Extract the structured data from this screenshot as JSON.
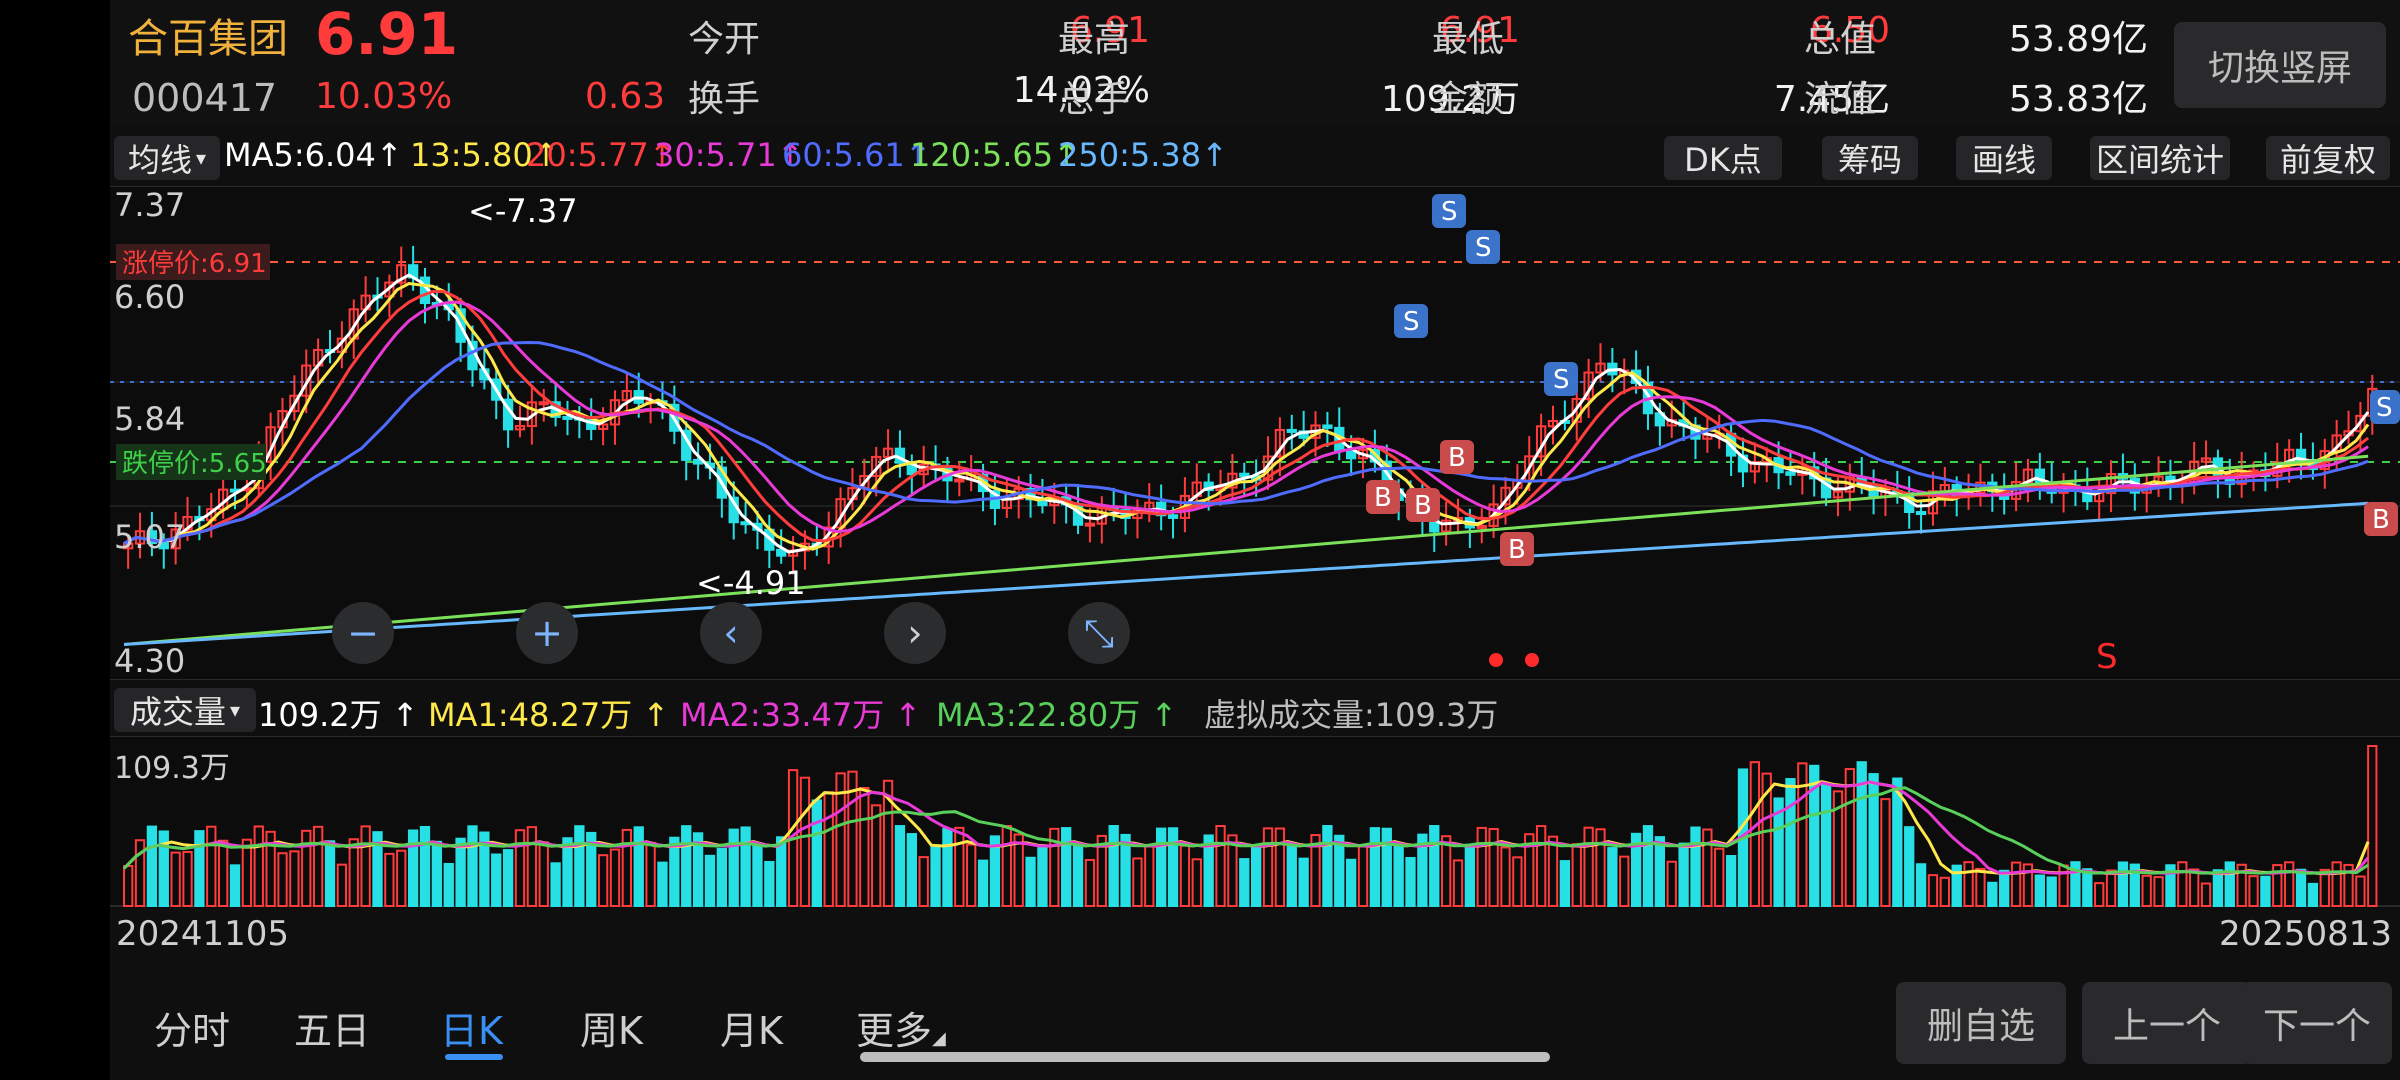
{
  "stock": {
    "name": "合百集团",
    "price": "6.91",
    "code": "000417",
    "change_pct": "10.03%",
    "change": "0.63"
  },
  "stats": [
    {
      "label": "今开",
      "value": "6.91",
      "color": "#ff3b3b"
    },
    {
      "label": "最高",
      "value": "6.91",
      "color": "#ff3b3b"
    },
    {
      "label": "最低",
      "value": "6.50",
      "color": "#ff3b3b"
    },
    {
      "label": "总值",
      "value": "53.89亿",
      "color": "#f2f2f2"
    },
    {
      "label": "换手",
      "value": "14.02%",
      "color": "#f2f2f2"
    },
    {
      "label": "总手",
      "value": "109.2万",
      "color": "#f2f2f2"
    },
    {
      "label": "金额",
      "value": "7.45亿",
      "color": "#f2f2f2"
    },
    {
      "label": "流值",
      "value": "53.83亿",
      "color": "#f2f2f2"
    }
  ],
  "header": {
    "switch_label": "切换竖屏"
  },
  "ma_bar": {
    "selector": "均线",
    "items": [
      {
        "text": "MA5:6.04",
        "color": "#ffffff"
      },
      {
        "text": "13:5.80",
        "color": "#ffe84a"
      },
      {
        "text": "20:5.77",
        "color": "#ff3d3d"
      },
      {
        "text": "30:5.71",
        "color": "#e83ad6"
      },
      {
        "text": "60:5.61",
        "color": "#4f6cff"
      },
      {
        "text": "120:5.65",
        "color": "#7be05a"
      },
      {
        "text": "250:5.38",
        "color": "#68b8ff"
      }
    ],
    "arrow": "↑",
    "tools": [
      "DK点",
      "筹码",
      "画线",
      "区间统计",
      "前复权"
    ]
  },
  "main_chart": {
    "y_ticks": [
      "7.37",
      "6.60",
      "5.84",
      "5.07",
      "4.30"
    ],
    "limit_up_label": "涨停价:6.91",
    "limit_down_label": "跌停价:5.65",
    "high_marker": "<-7.37",
    "low_marker": "<-4.91",
    "buy_label": "B",
    "sell_label": "S",
    "sell_footer": "S",
    "zoom_buttons": [
      "−",
      "+",
      "‹",
      "›",
      "⤡"
    ]
  },
  "volume_bar": {
    "selector": "成交量",
    "value": "109.2万",
    "items": [
      {
        "text": "MA1:48.27万",
        "color": "#ffe84a"
      },
      {
        "text": "MA2:33.47万",
        "color": "#e83ad6"
      },
      {
        "text": "MA3:22.80万",
        "color": "#58d05a"
      }
    ],
    "virtual": "虚拟成交量:109.3万",
    "y_top": "109.3万"
  },
  "chart_data": {
    "type": "candlestick",
    "start_date": "20241105",
    "end_date": "20250813",
    "ylim": [
      4.3,
      7.37
    ],
    "limit_up": 6.91,
    "limit_down": 5.65,
    "period_high": 7.37,
    "period_low": 4.91,
    "close_path": [
      5.1,
      5.2,
      5.3,
      5.45,
      5.8,
      6.2,
      6.5,
      6.7,
      6.9,
      6.6,
      6.2,
      5.9,
      6.0,
      5.9,
      6.0,
      6.1,
      5.7,
      5.4,
      5.2,
      5.0,
      5.3,
      5.6,
      5.7,
      5.6,
      5.5,
      5.45,
      5.4,
      5.35,
      5.3,
      5.35,
      5.4,
      5.5,
      5.6,
      5.8,
      5.9,
      5.7,
      5.5,
      5.3,
      5.2,
      5.4,
      5.7,
      6.0,
      6.3,
      6.1,
      5.9,
      5.8,
      5.7,
      5.6,
      5.55,
      5.5,
      5.45,
      5.4,
      5.45,
      5.5,
      5.52,
      5.5,
      5.48,
      5.5,
      5.55,
      5.6,
      5.58,
      5.62,
      5.65,
      5.8,
      6.04
    ]
  },
  "dates": {
    "left": "20241105",
    "right": "20250813"
  },
  "tabs": [
    {
      "label": "分时",
      "active": false
    },
    {
      "label": "五日",
      "active": false
    },
    {
      "label": "日K",
      "active": true
    },
    {
      "label": "周K",
      "active": false
    },
    {
      "label": "月K",
      "active": false
    },
    {
      "label": "更多",
      "active": false
    }
  ],
  "bottom_buttons": [
    "删自选",
    "上一个",
    "下一个"
  ]
}
